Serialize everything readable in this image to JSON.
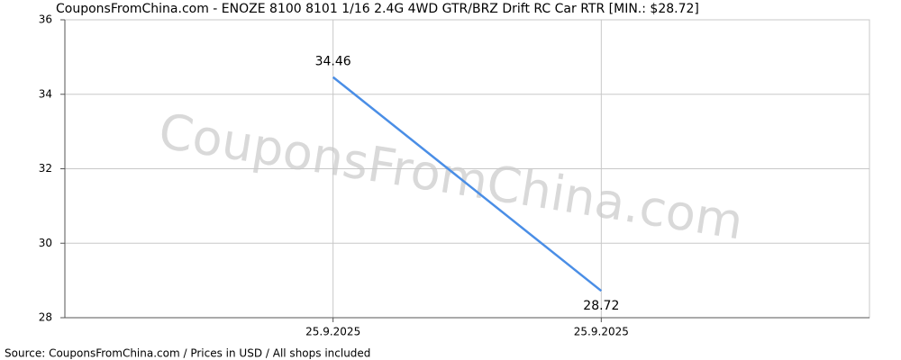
{
  "chart_data": {
    "type": "line",
    "title": "CouponsFromChina.com - ENOZE 8100 8101 1/16 2.4G 4WD GTR/BRZ Drift RC Car RTR [MIN.: $28.72]",
    "source": "Source: CouponsFromChina.com / Prices in USD / All shops included",
    "watermark": "CouponsFromChina.com",
    "categories": [
      "25.9.2025",
      "25.9.2025"
    ],
    "series": [
      {
        "name": "Price",
        "color": "#4a8ee6",
        "values": [
          34.46,
          28.72
        ]
      }
    ],
    "ylim": [
      28,
      36
    ],
    "yticks": [
      28,
      30,
      32,
      34,
      36
    ],
    "grid": true
  }
}
